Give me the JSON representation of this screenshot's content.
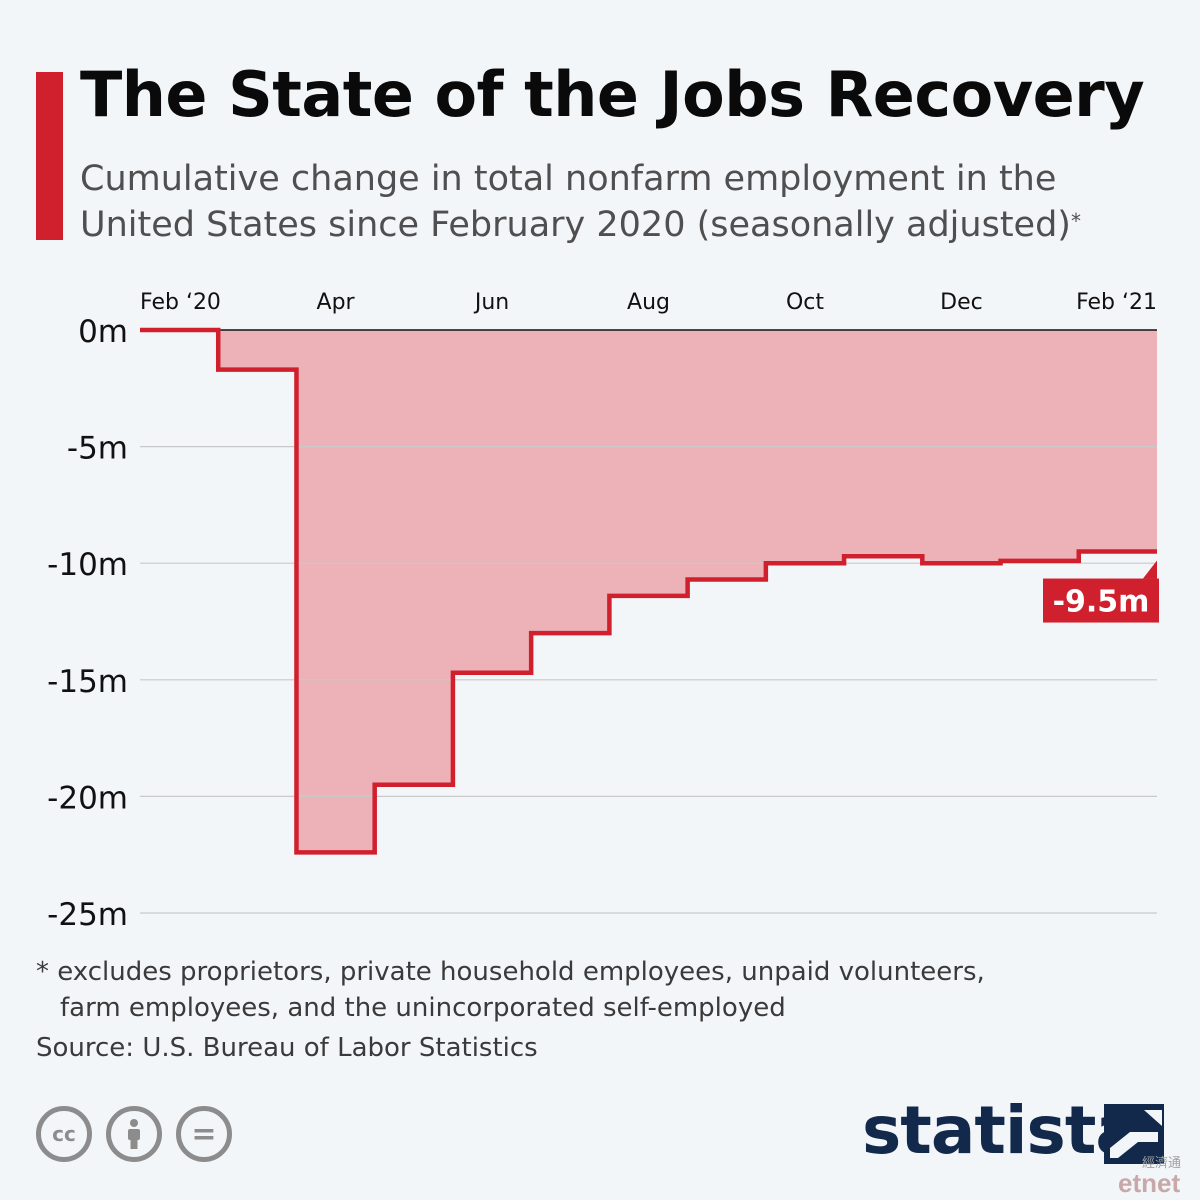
{
  "header": {
    "title": "The State of the Jobs Recovery",
    "subtitle": "Cumulative change in total nonfarm employment in the United States since February 2020 (seasonally adjusted)",
    "subtitle_mark": "*"
  },
  "colors": {
    "accent": "#d0202e",
    "area_fill": "#ecb2b8",
    "grid": "#c9c9c9",
    "brand_navy": "#13294b"
  },
  "chart_data": {
    "type": "area",
    "title": "The State of the Jobs Recovery",
    "subtitle": "Cumulative change in total nonfarm employment in the United States since February 2020 (seasonally adjusted)",
    "step": true,
    "x": [
      "Feb 2020",
      "Mar 2020",
      "Apr 2020",
      "May 2020",
      "Jun 2020",
      "Jul 2020",
      "Aug 2020",
      "Sep 2020",
      "Oct 2020",
      "Nov 2020",
      "Dec 2020",
      "Jan 2021",
      "Feb 2021"
    ],
    "x_tick_labels": [
      "Feb ‘20",
      "Apr",
      "Jun",
      "Aug",
      "Oct",
      "Dec",
      "Feb ‘21"
    ],
    "series": [
      {
        "values": [
          0,
          -1.7,
          -22.4,
          -19.5,
          -14.7,
          -13.0,
          -11.4,
          -10.7,
          -10.0,
          -9.7,
          -10.0,
          -9.9,
          -9.5
        ]
      }
    ],
    "y_ticks": [
      0,
      -5,
      -10,
      -15,
      -20,
      -25
    ],
    "y_tick_labels": [
      "0m",
      "-5m",
      "-10m",
      "-15m",
      "-20m",
      "-25m"
    ],
    "ylim": [
      -25,
      0
    ],
    "grid": true,
    "annotation": {
      "label": "-9.5m",
      "value": -9.5,
      "position": "end-of-series"
    }
  },
  "footer": {
    "footnote_line1": "* excludes proprietors, private household employees, unpaid volunteers,",
    "footnote_line2": "farm employees, and the unincorporated self-employed",
    "source": "Source: U.S. Bureau of Labor Statistics",
    "brand": "statista",
    "cc_icons": [
      "cc-icon",
      "attribution-icon",
      "no-derivatives-icon"
    ],
    "cc_label": "cc",
    "nd_label": "=",
    "watermark": "etnet",
    "watermark_cjk": "經濟通"
  }
}
